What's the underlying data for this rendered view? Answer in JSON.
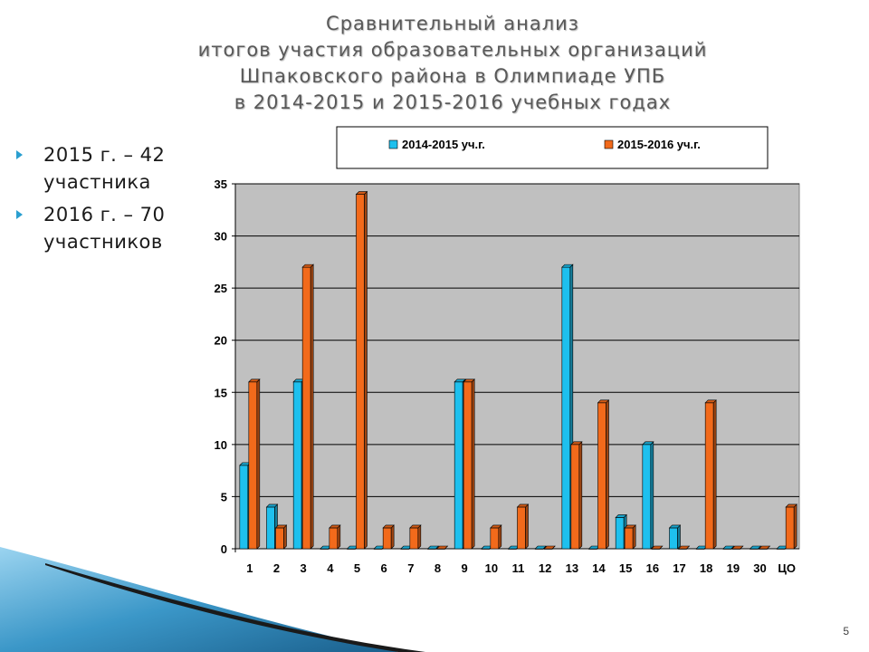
{
  "title_lines": [
    "Сравнительный анализ",
    "итогов участия образовательных организаций",
    "Шпаковского района в Олимпиаде УПБ",
    "в 2014-2015 и 2015-2016 учебных годах"
  ],
  "bullets": [
    {
      "line1": "2015 г. – 42",
      "line2": "участника"
    },
    {
      "line1": "2016 г. – 70",
      "line2": "участников"
    }
  ],
  "page_number": "5",
  "colors": {
    "series1": "#1ec0ee",
    "series2": "#f26a1b",
    "plot_bg": "#c0c0c0",
    "bullet_marker": "#2a9fd0"
  },
  "chart_data": {
    "type": "bar",
    "categories": [
      "1",
      "2",
      "3",
      "4",
      "5",
      "6",
      "7",
      "8",
      "9",
      "10",
      "11",
      "12",
      "13",
      "14",
      "15",
      "16",
      "17",
      "18",
      "19",
      "30",
      "ЦО"
    ],
    "series": [
      {
        "name": "2014-2015 уч.г.",
        "values": [
          8,
          4,
          16,
          0,
          0,
          0,
          0,
          0,
          16,
          0,
          0,
          0,
          27,
          0,
          3,
          10,
          2,
          0,
          0,
          0,
          0
        ]
      },
      {
        "name": "2015-2016 уч.г.",
        "values": [
          16,
          2,
          27,
          2,
          34,
          2,
          2,
          0,
          16,
          2,
          4,
          0,
          10,
          14,
          2,
          0,
          0,
          14,
          0,
          0,
          4
        ]
      }
    ],
    "ylim": [
      0,
      35
    ],
    "yticks": [
      0,
      5,
      10,
      15,
      20,
      25,
      30,
      35
    ],
    "grid": true,
    "legend_position": "top"
  }
}
